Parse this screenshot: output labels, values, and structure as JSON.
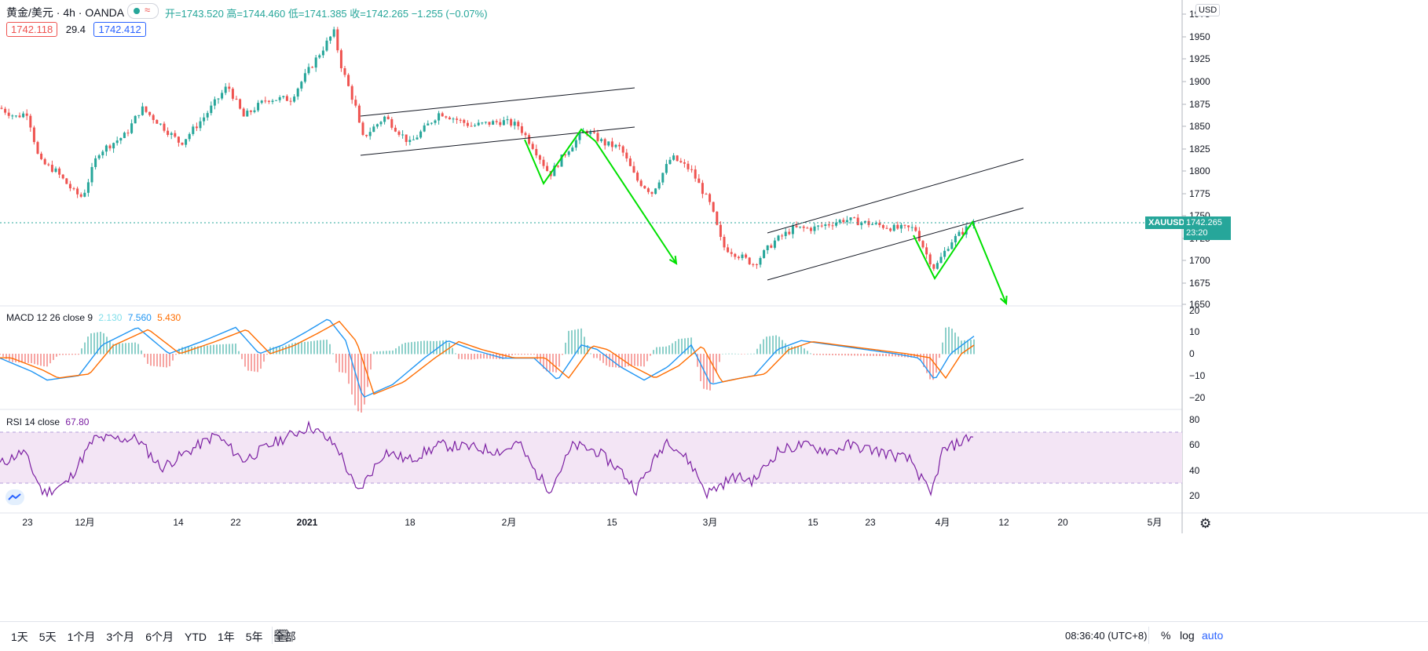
{
  "header": {
    "symbol": "黄金/美元 · 4h · OANDA",
    "ohlc": "开=1743.520 高=1744.460 低=1741.385 收=1742.265 −1.255 (−0.07%)",
    "bid": "1742.118",
    "spread": "29.4",
    "ask": "1742.412"
  },
  "price_axis": {
    "currency": "USD",
    "ticks": [
      "1975",
      "1950",
      "1925",
      "1900",
      "1875",
      "1850",
      "1825",
      "1800",
      "1775",
      "1750",
      "1725",
      "1700",
      "1675",
      "1650"
    ],
    "ticker": "XAUUSD",
    "last_price": "1742.265",
    "countdown": "23:20"
  },
  "macd": {
    "title": "MACD 12 26 close 9",
    "hist": "2.130",
    "macd": "7.560",
    "signal": "5.430",
    "ticks": [
      "20",
      "10",
      "0",
      "−10",
      "−20"
    ]
  },
  "rsi": {
    "title": "RSI 14 close",
    "value": "67.80",
    "ticks": [
      "80",
      "60",
      "40",
      "20"
    ]
  },
  "time_axis": {
    "ticks": [
      "23",
      "12月",
      "14",
      "22",
      "2021",
      "18",
      "2月",
      "15",
      "3月",
      "15",
      "23",
      "4月",
      "12",
      "20",
      "5月"
    ]
  },
  "bottom_bar": {
    "ranges": [
      "1天",
      "5天",
      "1个月",
      "3个月",
      "6个月",
      "YTD",
      "1年",
      "5年",
      "全部"
    ],
    "clock": "08:36:40 (UTC+8)",
    "pct": "%",
    "log": "log",
    "auto": "auto"
  },
  "colors": {
    "up": "#26a69a",
    "down": "#ef5350",
    "accent": "#2962ff",
    "price_tag": "#26a69a",
    "macd_line": "#2196f3",
    "signal_line": "#ff6d00",
    "rsi_line": "#7b1fa2",
    "rsi_band": "#f3e5f5",
    "arrows": "#00e000"
  },
  "chart_data": [
    {
      "type": "line",
      "name": "XAUUSD 4h",
      "ylim": [
        1650,
        1975
      ],
      "x": [
        "11-19",
        "11-23",
        "11-30",
        "12-07",
        "12-14",
        "12-22",
        "12-30",
        "01-06",
        "01-12",
        "01-18",
        "01-25",
        "02-01",
        "02-08",
        "02-15",
        "02-22",
        "03-01",
        "03-08",
        "03-15",
        "03-23",
        "03-31",
        "04-05",
        "04-08"
      ],
      "values": [
        1870,
        1860,
        1780,
        1840,
        1855,
        1885,
        1875,
        1950,
        1835,
        1845,
        1860,
        1855,
        1790,
        1845,
        1770,
        1815,
        1690,
        1725,
        1740,
        1730,
        1690,
        1742.265
      ]
    },
    {
      "type": "line",
      "name": "MACD",
      "ylim": [
        -25,
        20
      ],
      "x": [
        "11-19",
        "11-30",
        "12-14",
        "12-30",
        "01-06",
        "01-12",
        "01-25",
        "02-08",
        "02-22",
        "03-01",
        "03-08",
        "03-23",
        "03-31",
        "04-08"
      ],
      "series": [
        {
          "name": "MACD",
          "values": [
            -2,
            -12,
            10,
            0,
            14,
            -15,
            4,
            -10,
            -12,
            -3,
            -14,
            2,
            -10,
            7.56
          ]
        },
        {
          "name": "Signal",
          "values": [
            0,
            -10,
            8,
            1,
            12,
            -12,
            2,
            -8,
            -10,
            -2,
            -12,
            1,
            -6,
            5.43
          ]
        }
      ]
    },
    {
      "type": "line",
      "name": "RSI",
      "ylim": [
        10,
        85
      ],
      "x": [
        "11-19",
        "11-30",
        "12-07",
        "12-22",
        "12-30",
        "01-06",
        "01-12",
        "01-25",
        "02-08",
        "02-22",
        "03-01",
        "03-08",
        "03-23",
        "03-31",
        "04-08"
      ],
      "values": [
        45,
        22,
        65,
        65,
        60,
        78,
        22,
        55,
        25,
        62,
        22,
        35,
        58,
        20,
        67.8
      ]
    }
  ]
}
